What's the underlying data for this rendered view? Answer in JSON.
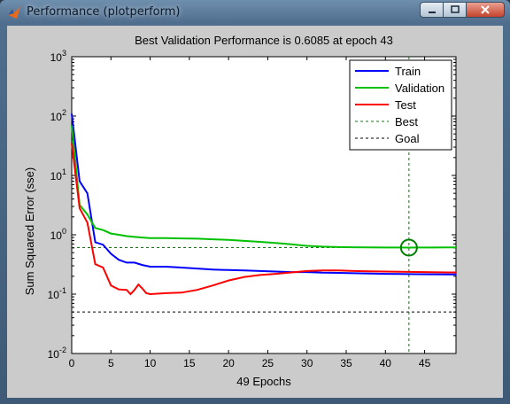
{
  "window": {
    "title": "Performance (plotperform)",
    "icon": "matlab-icon"
  },
  "chart_data": {
    "type": "line",
    "title": "Best Validation Performance is 0.6085 at epoch 43",
    "xlabel": "49 Epochs",
    "ylabel": "Sum Squared Error  (sse)",
    "xlim": [
      0,
      49
    ],
    "ylim": [
      0.01,
      1000
    ],
    "yscale": "log",
    "xticks": [
      "0",
      "5",
      "10",
      "15",
      "20",
      "25",
      "30",
      "35",
      "40",
      "45"
    ],
    "xtick_values": [
      0,
      5,
      10,
      15,
      20,
      25,
      30,
      35,
      40,
      45
    ],
    "yticks": [
      {
        "base": "10",
        "exp": "-2",
        "value": 0.01
      },
      {
        "base": "10",
        "exp": "-1",
        "value": 0.1
      },
      {
        "base": "10",
        "exp": "0",
        "value": 1
      },
      {
        "base": "10",
        "exp": "1",
        "value": 10
      },
      {
        "base": "10",
        "exp": "2",
        "value": 100
      },
      {
        "base": "10",
        "exp": "3",
        "value": 1000
      }
    ],
    "legend_position": "top-right",
    "series": [
      {
        "name": "Train",
        "color": "#0000ff",
        "style": "solid",
        "x": [
          0,
          1,
          2,
          3,
          4,
          5,
          6,
          7,
          8,
          9,
          10,
          12,
          14,
          16,
          18,
          20,
          22,
          24,
          26,
          28,
          30,
          32,
          34,
          36,
          38,
          40,
          42,
          44,
          46,
          48,
          49
        ],
        "y": [
          110,
          8,
          5,
          0.75,
          0.68,
          0.48,
          0.38,
          0.34,
          0.34,
          0.31,
          0.29,
          0.29,
          0.28,
          0.27,
          0.26,
          0.255,
          0.25,
          0.245,
          0.24,
          0.235,
          0.235,
          0.23,
          0.228,
          0.225,
          0.222,
          0.22,
          0.218,
          0.217,
          0.216,
          0.215,
          0.215
        ]
      },
      {
        "name": "Validation",
        "color": "#00c000",
        "style": "solid",
        "x": [
          0,
          1,
          2,
          3,
          4,
          5,
          6,
          7,
          8,
          9,
          10,
          12,
          14,
          16,
          18,
          20,
          22,
          24,
          26,
          28,
          30,
          32,
          34,
          36,
          38,
          40,
          42,
          43,
          44,
          46,
          48,
          49
        ],
        "y": [
          70,
          3.2,
          2.2,
          1.3,
          1.2,
          1.05,
          1.0,
          0.95,
          0.92,
          0.9,
          0.88,
          0.88,
          0.87,
          0.86,
          0.84,
          0.82,
          0.79,
          0.76,
          0.73,
          0.69,
          0.65,
          0.63,
          0.62,
          0.615,
          0.612,
          0.61,
          0.609,
          0.6085,
          0.609,
          0.61,
          0.612,
          0.613
        ]
      },
      {
        "name": "Test",
        "color": "#ff0000",
        "style": "solid",
        "x": [
          0,
          1,
          2,
          3,
          4,
          5,
          6,
          7,
          7.5,
          8,
          8.5,
          9,
          9.5,
          10,
          12,
          14,
          16,
          18,
          20,
          22,
          24,
          26,
          28,
          30,
          32,
          34,
          36,
          38,
          40,
          42,
          44,
          46,
          48,
          49
        ],
        "y": [
          35,
          2.8,
          1.6,
          0.32,
          0.28,
          0.14,
          0.12,
          0.118,
          0.1,
          0.118,
          0.145,
          0.125,
          0.104,
          0.1,
          0.104,
          0.106,
          0.118,
          0.14,
          0.17,
          0.195,
          0.21,
          0.22,
          0.232,
          0.245,
          0.25,
          0.25,
          0.245,
          0.242,
          0.24,
          0.238,
          0.236,
          0.234,
          0.232,
          0.232
        ]
      }
    ],
    "best": {
      "label": "Best",
      "epoch": 43,
      "value": 0.6085,
      "color": "#008000",
      "style": "dotted"
    },
    "goal": {
      "label": "Goal",
      "value": 0.05,
      "color": "#000000",
      "style": "dotted"
    }
  }
}
